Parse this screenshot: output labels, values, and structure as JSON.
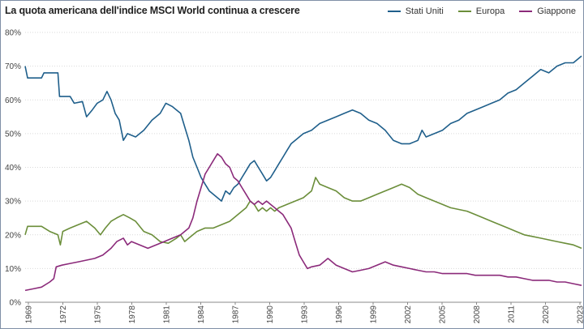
{
  "chart_data": {
    "type": "line",
    "title": "La quota americana dell'indice MSCI World continua a crescere",
    "xlabel": "",
    "ylabel": "",
    "ylim": [
      0,
      80
    ],
    "yticks": [
      "0%",
      "10%",
      "20%",
      "30%",
      "40%",
      "50%",
      "60%",
      "70%",
      "80%"
    ],
    "xticks": [
      "1969",
      "1972",
      "1975",
      "1978",
      "1981",
      "1984",
      "1987",
      "1990",
      "1993",
      "1996",
      "1999",
      "2002",
      "2005",
      "2008",
      "2011",
      "2020",
      "2023"
    ],
    "grid": true,
    "legend_position": "top-right",
    "series": [
      {
        "name": "Stati Uniti",
        "color": "#1f5f8b",
        "points": [
          [
            0.0,
            70
          ],
          [
            0.3,
            66.5
          ],
          [
            2.0,
            66.5
          ],
          [
            2.3,
            68
          ],
          [
            4.0,
            68
          ],
          [
            4.2,
            61
          ],
          [
            5.5,
            61
          ],
          [
            6.0,
            59
          ],
          [
            7.0,
            59.5
          ],
          [
            7.5,
            55
          ],
          [
            8.2,
            57
          ],
          [
            8.8,
            59
          ],
          [
            9.5,
            60
          ],
          [
            10.0,
            62.5
          ],
          [
            10.5,
            60
          ],
          [
            11.0,
            56
          ],
          [
            11.5,
            54
          ],
          [
            12.0,
            48
          ],
          [
            12.5,
            50
          ],
          [
            13.5,
            49
          ],
          [
            14.5,
            51
          ],
          [
            15.5,
            54
          ],
          [
            16.5,
            56
          ],
          [
            17.2,
            59
          ],
          [
            18.0,
            58
          ],
          [
            18.5,
            57
          ],
          [
            19.0,
            56
          ],
          [
            19.5,
            52
          ],
          [
            20.0,
            48
          ],
          [
            20.5,
            43
          ],
          [
            21.0,
            40
          ],
          [
            21.5,
            37
          ],
          [
            22.0,
            35
          ],
          [
            22.5,
            33
          ],
          [
            23.0,
            32
          ],
          [
            23.5,
            31
          ],
          [
            24.0,
            30
          ],
          [
            24.5,
            33
          ],
          [
            25.0,
            32
          ],
          [
            25.5,
            34
          ],
          [
            26.0,
            35
          ],
          [
            26.5,
            37
          ],
          [
            27.0,
            39
          ],
          [
            27.5,
            41
          ],
          [
            28.0,
            42
          ],
          [
            28.5,
            40
          ],
          [
            29.0,
            38
          ],
          [
            29.5,
            36
          ],
          [
            30.0,
            37
          ],
          [
            30.5,
            39
          ],
          [
            31.0,
            41
          ],
          [
            31.5,
            43
          ],
          [
            32.0,
            45
          ],
          [
            32.5,
            47
          ],
          [
            33.0,
            48
          ],
          [
            34.0,
            50
          ],
          [
            35.0,
            51
          ],
          [
            36.0,
            53
          ],
          [
            37.0,
            54
          ],
          [
            38.0,
            55
          ],
          [
            39.0,
            56
          ],
          [
            40.0,
            57
          ],
          [
            41.0,
            56
          ],
          [
            42.0,
            54
          ],
          [
            43.0,
            53
          ],
          [
            44.0,
            51
          ],
          [
            45.0,
            48
          ],
          [
            46.0,
            47
          ],
          [
            47.0,
            47
          ],
          [
            48.0,
            48
          ],
          [
            48.5,
            51
          ],
          [
            49.0,
            49
          ],
          [
            50.0,
            50
          ],
          [
            51.0,
            51
          ],
          [
            52.0,
            53
          ],
          [
            53.0,
            54
          ],
          [
            54.0,
            56
          ],
          [
            55.0,
            57
          ],
          [
            56.0,
            58
          ],
          [
            57.0,
            59
          ],
          [
            58.0,
            60
          ],
          [
            59.0,
            62
          ],
          [
            60.0,
            63
          ],
          [
            61.0,
            65
          ],
          [
            62.0,
            67
          ],
          [
            63.0,
            69
          ],
          [
            64.0,
            68
          ],
          [
            65.0,
            70
          ],
          [
            66.0,
            71
          ],
          [
            67.0,
            71
          ],
          [
            68.0,
            73
          ]
        ]
      },
      {
        "name": "Europa",
        "color": "#6b8e3a",
        "points": [
          [
            0.0,
            20
          ],
          [
            0.3,
            22.5
          ],
          [
            2.0,
            22.5
          ],
          [
            3.0,
            21
          ],
          [
            4.0,
            20
          ],
          [
            4.3,
            17
          ],
          [
            4.6,
            21
          ],
          [
            5.5,
            22
          ],
          [
            6.5,
            23
          ],
          [
            7.5,
            24
          ],
          [
            8.5,
            22
          ],
          [
            9.2,
            20
          ],
          [
            9.8,
            22
          ],
          [
            10.5,
            24
          ],
          [
            11.2,
            25
          ],
          [
            12.0,
            26
          ],
          [
            12.8,
            25
          ],
          [
            13.5,
            24
          ],
          [
            14.5,
            21
          ],
          [
            15.5,
            20
          ],
          [
            16.5,
            18
          ],
          [
            17.5,
            17.5
          ],
          [
            18.5,
            19
          ],
          [
            19.0,
            20
          ],
          [
            19.5,
            18
          ],
          [
            20.0,
            19
          ],
          [
            20.5,
            20
          ],
          [
            21.0,
            21
          ],
          [
            22.0,
            22
          ],
          [
            23.0,
            22
          ],
          [
            24.0,
            23
          ],
          [
            25.0,
            24
          ],
          [
            26.0,
            26
          ],
          [
            27.0,
            28
          ],
          [
            27.5,
            30
          ],
          [
            28.0,
            29
          ],
          [
            28.5,
            27
          ],
          [
            29.0,
            28
          ],
          [
            29.5,
            27
          ],
          [
            30.0,
            28
          ],
          [
            30.5,
            27
          ],
          [
            31.0,
            28
          ],
          [
            32.0,
            29
          ],
          [
            33.0,
            30
          ],
          [
            34.0,
            31
          ],
          [
            35.0,
            33
          ],
          [
            35.5,
            37
          ],
          [
            36.0,
            35
          ],
          [
            37.0,
            34
          ],
          [
            38.0,
            33
          ],
          [
            39.0,
            31
          ],
          [
            40.0,
            30
          ],
          [
            41.0,
            30
          ],
          [
            42.0,
            31
          ],
          [
            43.0,
            32
          ],
          [
            44.0,
            33
          ],
          [
            45.0,
            34
          ],
          [
            46.0,
            35
          ],
          [
            47.0,
            34
          ],
          [
            48.0,
            32
          ],
          [
            49.0,
            31
          ],
          [
            50.0,
            30
          ],
          [
            51.0,
            29
          ],
          [
            52.0,
            28
          ],
          [
            53.0,
            27.5
          ],
          [
            54.0,
            27
          ],
          [
            55.0,
            26
          ],
          [
            56.0,
            25
          ],
          [
            57.0,
            24
          ],
          [
            58.0,
            23
          ],
          [
            59.0,
            22
          ],
          [
            60.0,
            21
          ],
          [
            61.0,
            20
          ],
          [
            62.0,
            19.5
          ],
          [
            63.0,
            19
          ],
          [
            64.0,
            18.5
          ],
          [
            65.0,
            18
          ],
          [
            66.0,
            17.5
          ],
          [
            67.0,
            17
          ],
          [
            68.0,
            16
          ]
        ]
      },
      {
        "name": "Giappone",
        "color": "#8b2a7a",
        "points": [
          [
            0.0,
            3.5
          ],
          [
            1.0,
            4
          ],
          [
            2.0,
            4.5
          ],
          [
            3.0,
            6
          ],
          [
            3.5,
            7
          ],
          [
            3.8,
            10.5
          ],
          [
            4.5,
            11
          ],
          [
            5.5,
            11.5
          ],
          [
            6.5,
            12
          ],
          [
            7.5,
            12.5
          ],
          [
            8.5,
            13
          ],
          [
            9.5,
            14
          ],
          [
            10.5,
            16
          ],
          [
            11.2,
            18
          ],
          [
            12.0,
            19
          ],
          [
            12.5,
            17
          ],
          [
            13.0,
            18
          ],
          [
            14.0,
            17
          ],
          [
            15.0,
            16
          ],
          [
            16.0,
            17
          ],
          [
            17.0,
            18
          ],
          [
            18.0,
            19
          ],
          [
            19.0,
            20
          ],
          [
            20.0,
            22
          ],
          [
            20.5,
            25
          ],
          [
            21.0,
            30
          ],
          [
            21.5,
            34
          ],
          [
            22.0,
            38
          ],
          [
            22.5,
            40
          ],
          [
            23.0,
            42
          ],
          [
            23.5,
            44
          ],
          [
            24.0,
            43
          ],
          [
            24.5,
            41
          ],
          [
            25.0,
            40
          ],
          [
            25.5,
            37
          ],
          [
            26.0,
            36
          ],
          [
            26.5,
            34
          ],
          [
            27.0,
            32
          ],
          [
            27.5,
            30
          ],
          [
            28.0,
            29
          ],
          [
            28.5,
            30
          ],
          [
            29.0,
            29
          ],
          [
            29.5,
            30
          ],
          [
            30.0,
            29
          ],
          [
            30.5,
            28
          ],
          [
            31.0,
            27
          ],
          [
            31.5,
            26
          ],
          [
            32.0,
            24
          ],
          [
            32.5,
            22
          ],
          [
            33.0,
            18
          ],
          [
            33.5,
            14
          ],
          [
            34.0,
            12
          ],
          [
            34.5,
            10
          ],
          [
            35.0,
            10.5
          ],
          [
            36.0,
            11
          ],
          [
            37.0,
            13
          ],
          [
            38.0,
            11
          ],
          [
            39.0,
            10
          ],
          [
            40.0,
            9
          ],
          [
            41.0,
            9.5
          ],
          [
            42.0,
            10
          ],
          [
            43.0,
            11
          ],
          [
            44.0,
            12
          ],
          [
            45.0,
            11
          ],
          [
            46.0,
            10.5
          ],
          [
            47.0,
            10
          ],
          [
            48.0,
            9.5
          ],
          [
            49.0,
            9
          ],
          [
            50.0,
            9
          ],
          [
            51.0,
            8.5
          ],
          [
            52.0,
            8.5
          ],
          [
            53.0,
            8.5
          ],
          [
            54.0,
            8.5
          ],
          [
            55.0,
            8
          ],
          [
            56.0,
            8
          ],
          [
            57.0,
            8
          ],
          [
            58.0,
            8
          ],
          [
            59.0,
            7.5
          ],
          [
            60.0,
            7.5
          ],
          [
            61.0,
            7
          ],
          [
            62.0,
            6.5
          ],
          [
            63.0,
            6.5
          ],
          [
            64.0,
            6.5
          ],
          [
            65.0,
            6
          ],
          [
            66.0,
            6
          ],
          [
            67.0,
            5.5
          ],
          [
            68.0,
            5
          ]
        ]
      }
    ]
  }
}
